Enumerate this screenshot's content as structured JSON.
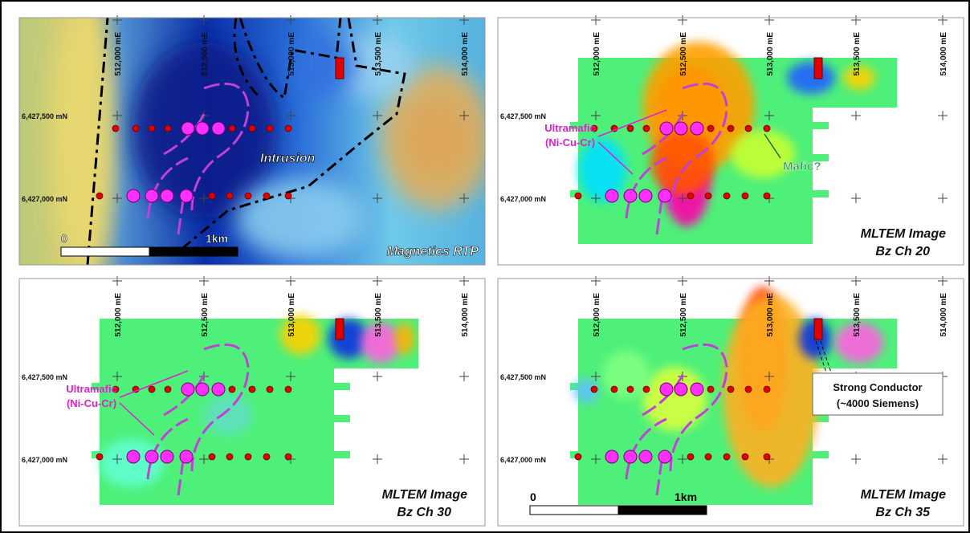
{
  "panels": [
    {
      "eastings": [
        "512,000 mE",
        "512,500 mE",
        "513,000 mE",
        "513,500 mE",
        "514,000 mE"
      ],
      "northings": [
        "6,427,500 mN",
        "6,427,000 mN"
      ],
      "labels": [
        "Intrusion"
      ],
      "scale": [
        "0",
        "1km"
      ],
      "title": [
        "Magnetics RTP"
      ]
    },
    {
      "eastings": [
        "512,000 mE",
        "512,500 mE",
        "513,000 mE",
        "513,500 mE",
        "514,000 mE"
      ],
      "northings": [
        "6,427,500 mN",
        "6,427,000 mN"
      ],
      "labels": [
        "Ultramafic",
        "(Ni-Cu-Cr)",
        "Mafic?"
      ],
      "title": [
        "MLTEM Image",
        "Bz Ch 20"
      ]
    },
    {
      "eastings": [
        "512,000 mE",
        "512,500 mE",
        "513,000 mE",
        "513,500 mE",
        "514,000 mE"
      ],
      "northings": [
        "6,427,500 mN",
        "6,427,000 mN"
      ],
      "labels": [
        "Ultramafic",
        "(Ni-Cu-Cr)"
      ],
      "title": [
        "MLTEM Image",
        "Bz Ch 30"
      ]
    },
    {
      "eastings": [
        "512,000 mE",
        "512,500 mE",
        "513,000 mE",
        "513,500 mE",
        "514,000 mE"
      ],
      "northings": [
        "6,427,500 mN",
        "6,427,000 mN"
      ],
      "labels": [
        "Strong Conductor",
        "(~4000 Siemens)"
      ],
      "scale": [
        "0",
        "1km"
      ],
      "title": [
        "MLTEM Image",
        "Bz Ch 35"
      ]
    }
  ]
}
